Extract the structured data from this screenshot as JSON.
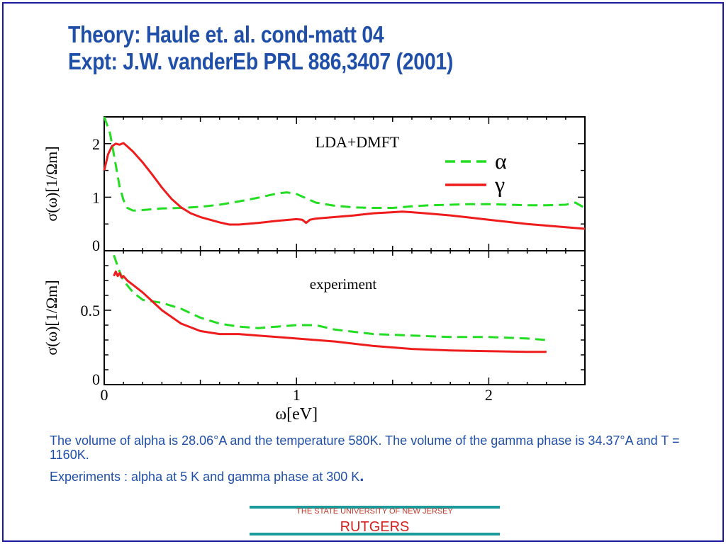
{
  "slide": {
    "title_line1": "Theory: Haule et. al. cond-matt 04",
    "title_line2": "Expt: J.W. vanderEb PRL 886,3407 (2001)",
    "caption_line1": "The volume of  alpha is 28.06°A  and the temperature  580K. The volume of the gamma  phase is 34.37°A and  T = 1160K.",
    "caption_line2": "Experiments : alpha    at 5 K and gamma phase  at 300 K",
    "caption_line2_end": ".",
    "footer_university": "THE STATE UNIVERSITY OF NEW JERSEY",
    "footer_name": "RUTGERS"
  },
  "colors": {
    "title": "#1f4fa8",
    "alpha": "#22dd22",
    "gamma": "#ee1c1c",
    "footer_rule": "#1a9a9a",
    "frame": "#1a1aa0"
  },
  "chart_data": [
    {
      "type": "line",
      "annotation": "LDA+DMFT",
      "ylabel": "σ(ω)[1/Ωm]",
      "xlabel": "",
      "xlim": [
        0,
        2.5
      ],
      "ylim": [
        0,
        2.5
      ],
      "xticks": [
        0,
        1,
        2
      ],
      "yticks": [
        0,
        1,
        2
      ],
      "ytick_labels": [
        "0",
        "1",
        "2"
      ],
      "legend": "top-right",
      "series": [
        {
          "name": "α",
          "style": "dashed",
          "color": "#22dd22",
          "x": [
            0.0,
            0.03,
            0.06,
            0.08,
            0.1,
            0.12,
            0.15,
            0.2,
            0.3,
            0.4,
            0.5,
            0.6,
            0.7,
            0.8,
            0.9,
            0.95,
            1.0,
            1.05,
            1.1,
            1.2,
            1.3,
            1.4,
            1.5,
            1.6,
            1.7,
            1.8,
            1.9,
            2.0,
            2.1,
            2.2,
            2.3,
            2.4,
            2.45,
            2.5
          ],
          "y": [
            2.55,
            2.2,
            1.6,
            1.2,
            0.95,
            0.8,
            0.75,
            0.76,
            0.79,
            0.8,
            0.82,
            0.86,
            0.92,
            0.99,
            1.07,
            1.09,
            1.06,
            0.98,
            0.9,
            0.84,
            0.81,
            0.8,
            0.8,
            0.83,
            0.85,
            0.86,
            0.87,
            0.87,
            0.86,
            0.85,
            0.85,
            0.86,
            0.9,
            0.8
          ]
        },
        {
          "name": "γ",
          "style": "solid",
          "color": "#ee1c1c",
          "x": [
            0.0,
            0.02,
            0.04,
            0.06,
            0.08,
            0.1,
            0.12,
            0.15,
            0.2,
            0.25,
            0.3,
            0.35,
            0.4,
            0.45,
            0.5,
            0.6,
            0.65,
            0.7,
            0.8,
            0.9,
            1.0,
            1.03,
            1.05,
            1.07,
            1.1,
            1.2,
            1.3,
            1.4,
            1.5,
            1.55,
            1.6,
            1.7,
            1.8,
            1.9,
            2.0,
            2.1,
            2.2,
            2.3,
            2.4,
            2.5
          ],
          "y": [
            1.5,
            1.8,
            1.95,
            2.0,
            1.98,
            2.01,
            1.95,
            1.85,
            1.65,
            1.42,
            1.18,
            0.97,
            0.81,
            0.7,
            0.63,
            0.53,
            0.49,
            0.49,
            0.52,
            0.56,
            0.59,
            0.58,
            0.52,
            0.58,
            0.6,
            0.63,
            0.66,
            0.7,
            0.72,
            0.73,
            0.72,
            0.69,
            0.66,
            0.62,
            0.58,
            0.54,
            0.5,
            0.47,
            0.44,
            0.41
          ]
        }
      ]
    },
    {
      "type": "line",
      "annotation": "experiment",
      "ylabel": "σ(ω)[1/Ωm]",
      "xlabel": "ω[eV]",
      "xlim": [
        0,
        2.5
      ],
      "ylim": [
        0,
        0.9
      ],
      "xticks": [
        0,
        1,
        2
      ],
      "xtick_labels": [
        "0",
        "1",
        "2"
      ],
      "yticks": [
        0,
        0.5
      ],
      "ytick_labels": [
        "0",
        "0.5"
      ],
      "series": [
        {
          "name": "α",
          "style": "dashed",
          "color": "#22dd22",
          "x": [
            0.05,
            0.08,
            0.1,
            0.15,
            0.2,
            0.3,
            0.4,
            0.5,
            0.6,
            0.7,
            0.8,
            0.9,
            1.0,
            1.1,
            1.2,
            1.4,
            1.6,
            1.8,
            2.0,
            2.2,
            2.3
          ],
          "y": [
            0.87,
            0.76,
            0.7,
            0.62,
            0.57,
            0.55,
            0.51,
            0.45,
            0.41,
            0.39,
            0.38,
            0.39,
            0.4,
            0.4,
            0.37,
            0.34,
            0.33,
            0.32,
            0.32,
            0.31,
            0.3
          ]
        },
        {
          "name": "γ",
          "style": "solid",
          "color": "#ee1c1c",
          "x": [
            0.05,
            0.06,
            0.07,
            0.08,
            0.09,
            0.1,
            0.12,
            0.15,
            0.2,
            0.25,
            0.3,
            0.4,
            0.5,
            0.6,
            0.7,
            0.8,
            1.0,
            1.2,
            1.4,
            1.6,
            1.8,
            2.0,
            2.2,
            2.3
          ],
          "y": [
            0.73,
            0.76,
            0.73,
            0.75,
            0.72,
            0.73,
            0.7,
            0.67,
            0.62,
            0.56,
            0.5,
            0.41,
            0.36,
            0.34,
            0.34,
            0.33,
            0.31,
            0.29,
            0.26,
            0.24,
            0.23,
            0.225,
            0.22,
            0.22
          ]
        }
      ]
    }
  ]
}
